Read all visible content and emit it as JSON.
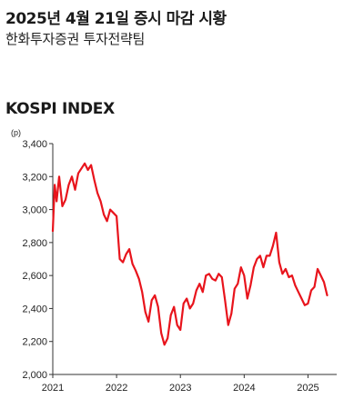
{
  "header": {
    "title": "2025년 4월 21일 증시 마감 시황",
    "subtitle": "한화투자증권 투자전략팀"
  },
  "chart_data": {
    "type": "line",
    "title": "KOSPI INDEX",
    "ylabel": "(p)",
    "xlabel": "",
    "ylim": [
      2000,
      3400
    ],
    "yticks": [
      2000,
      2200,
      2400,
      2600,
      2800,
      3000,
      3200,
      3400
    ],
    "yticklabels": [
      "2,000",
      "2,200",
      "2,400",
      "2,600",
      "2,800",
      "3,000",
      "3,200",
      "3,400"
    ],
    "xlim": [
      2021.0,
      2025.45
    ],
    "xticks": [
      2021,
      2022,
      2023,
      2024,
      2025
    ],
    "xticklabels": [
      "2021",
      "2022",
      "2023",
      "2024",
      "2025"
    ],
    "grid": false,
    "series": [
      {
        "color": "#e8141c",
        "x": [
          2021.0,
          2021.03,
          2021.06,
          2021.1,
          2021.15,
          2021.2,
          2021.25,
          2021.3,
          2021.35,
          2021.4,
          2021.45,
          2021.5,
          2021.55,
          2021.6,
          2021.65,
          2021.7,
          2021.75,
          2021.8,
          2021.85,
          2021.9,
          2021.95,
          2022.0,
          2022.05,
          2022.1,
          2022.15,
          2022.2,
          2022.25,
          2022.3,
          2022.35,
          2022.4,
          2022.45,
          2022.5,
          2022.55,
          2022.6,
          2022.65,
          2022.7,
          2022.75,
          2022.8,
          2022.85,
          2022.9,
          2022.95,
          2023.0,
          2023.05,
          2023.1,
          2023.15,
          2023.2,
          2023.25,
          2023.3,
          2023.35,
          2023.4,
          2023.45,
          2023.5,
          2023.55,
          2023.6,
          2023.65,
          2023.7,
          2023.75,
          2023.8,
          2023.85,
          2023.9,
          2023.95,
          2024.0,
          2024.05,
          2024.1,
          2024.15,
          2024.2,
          2024.25,
          2024.3,
          2024.35,
          2024.4,
          2024.45,
          2024.5,
          2024.55,
          2024.6,
          2024.65,
          2024.7,
          2024.75,
          2024.8,
          2024.85,
          2024.9,
          2024.95,
          2025.0,
          2025.05,
          2025.1,
          2025.15,
          2025.2,
          2025.25,
          2025.3
        ],
        "y": [
          2870,
          3150,
          3050,
          3200,
          3020,
          3060,
          3150,
          3200,
          3120,
          3220,
          3250,
          3280,
          3240,
          3270,
          3180,
          3100,
          3050,
          2970,
          2930,
          3000,
          2980,
          2960,
          2700,
          2680,
          2730,
          2760,
          2670,
          2630,
          2580,
          2500,
          2380,
          2320,
          2450,
          2480,
          2410,
          2250,
          2180,
          2220,
          2360,
          2410,
          2300,
          2270,
          2430,
          2460,
          2400,
          2430,
          2510,
          2550,
          2500,
          2600,
          2610,
          2580,
          2570,
          2610,
          2590,
          2450,
          2300,
          2370,
          2520,
          2550,
          2650,
          2600,
          2460,
          2540,
          2650,
          2700,
          2720,
          2650,
          2720,
          2720,
          2780,
          2860,
          2680,
          2610,
          2640,
          2590,
          2600,
          2540,
          2500,
          2460,
          2420,
          2430,
          2510,
          2530,
          2640,
          2600,
          2560,
          2480
        ]
      }
    ]
  }
}
